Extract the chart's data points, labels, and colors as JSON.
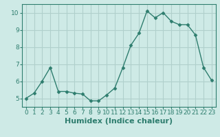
{
  "x": [
    0,
    1,
    2,
    3,
    4,
    5,
    6,
    7,
    8,
    9,
    10,
    11,
    12,
    13,
    14,
    15,
    16,
    17,
    18,
    19,
    20,
    21,
    22,
    23
  ],
  "y": [
    5.0,
    5.3,
    6.0,
    6.8,
    5.4,
    5.4,
    5.3,
    5.25,
    4.85,
    4.85,
    5.2,
    5.6,
    6.8,
    8.1,
    8.8,
    10.1,
    9.7,
    10.0,
    9.5,
    9.3,
    9.3,
    8.7,
    6.8,
    6.05
  ],
  "xlabel": "Humidex (Indice chaleur)",
  "xlim": [
    -0.5,
    23.5
  ],
  "ylim": [
    4.5,
    10.5
  ],
  "yticks": [
    5,
    6,
    7,
    8,
    9,
    10
  ],
  "xticks": [
    0,
    1,
    2,
    3,
    4,
    5,
    6,
    7,
    8,
    9,
    10,
    11,
    12,
    13,
    14,
    15,
    16,
    17,
    18,
    19,
    20,
    21,
    22,
    23
  ],
  "line_color": "#2e7d6e",
  "marker": "D",
  "marker_size": 2.5,
  "bg_color": "#ceeae6",
  "grid_color": "#b0d0cc",
  "tick_label_fontsize": 6.5,
  "xlabel_fontsize": 8
}
